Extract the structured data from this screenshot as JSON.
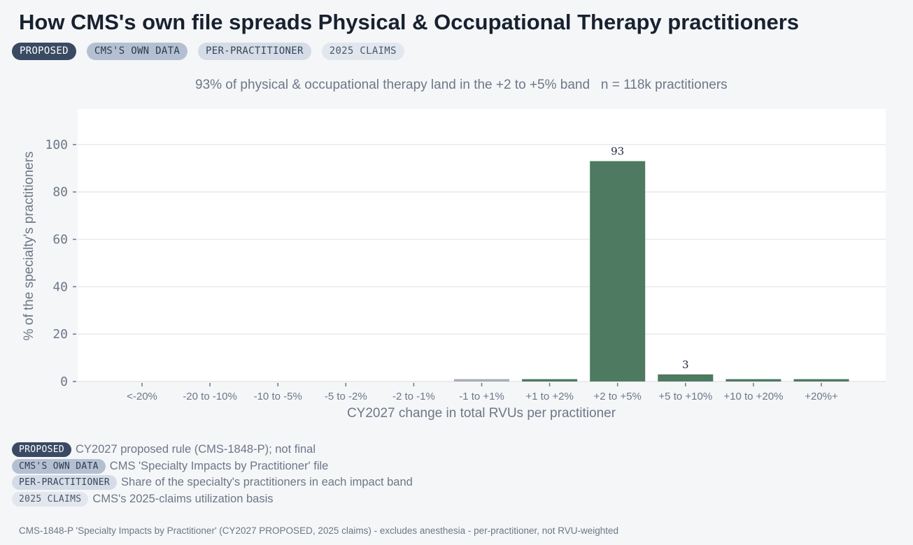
{
  "title": "How CMS's own file spreads Physical & Occupational Therapy practitioners",
  "chips": [
    {
      "label": "PROPOSED",
      "style": "dark"
    },
    {
      "label": "CMS'S OWN DATA",
      "style": "mid"
    },
    {
      "label": "PER-PRACTITIONER",
      "style": "light"
    },
    {
      "label": "2025 CLAIMS",
      "style": "pale"
    }
  ],
  "subtitle": "93% of physical & occupational therapy land in the +2 to +5% band   n = 118k practitioners",
  "chart_data": {
    "type": "bar",
    "categories": [
      "<-20%",
      "-20 to -10%",
      "-10 to -5%",
      "-5 to -2%",
      "-2 to -1%",
      "-1 to +1%",
      "+1 to +2%",
      "+2 to +5%",
      "+5 to +10%",
      "+10 to +20%",
      "+20%+"
    ],
    "values": [
      0,
      0,
      0,
      0,
      0,
      1,
      1,
      93,
      3,
      1,
      1
    ],
    "data_labels": {
      "7": "93",
      "8": "3"
    },
    "bar_colors": [
      "#4d7a60",
      "#4d7a60",
      "#4d7a60",
      "#4d7a60",
      "#4d7a60",
      "#a9adb8",
      "#4d7a60",
      "#4d7a60",
      "#4d7a60",
      "#4d7a60",
      "#4d7a60"
    ],
    "xlabel": "CY2027 change in total RVUs per practitioner",
    "ylabel": "% of the specialty's practitioners",
    "ylim": [
      0,
      115
    ],
    "yticks": [
      0,
      20,
      40,
      60,
      80,
      100
    ],
    "grid": true
  },
  "legend": [
    {
      "chip": "PROPOSED",
      "style": "dark",
      "text": "CY2027 proposed rule (CMS-1848-P); not final"
    },
    {
      "chip": "CMS'S OWN DATA",
      "style": "mid",
      "text": "CMS 'Specialty Impacts by Practitioner' file"
    },
    {
      "chip": "PER-PRACTITIONER",
      "style": "light",
      "text": "Share of the specialty's practitioners in each impact band"
    },
    {
      "chip": "2025 CLAIMS",
      "style": "pale",
      "text": "CMS's 2025-claims utilization basis"
    }
  ],
  "footnote": "CMS-1848-P 'Specialty Impacts by Practitioner' (CY2027 PROPOSED, 2025 claims) - excludes anesthesia - per-practitioner, not RVU-weighted",
  "colors": {
    "bar": "#4d7a60",
    "bar_muted": "#a9adb8",
    "background": "#f4f6f8",
    "plot": "#ffffff"
  }
}
